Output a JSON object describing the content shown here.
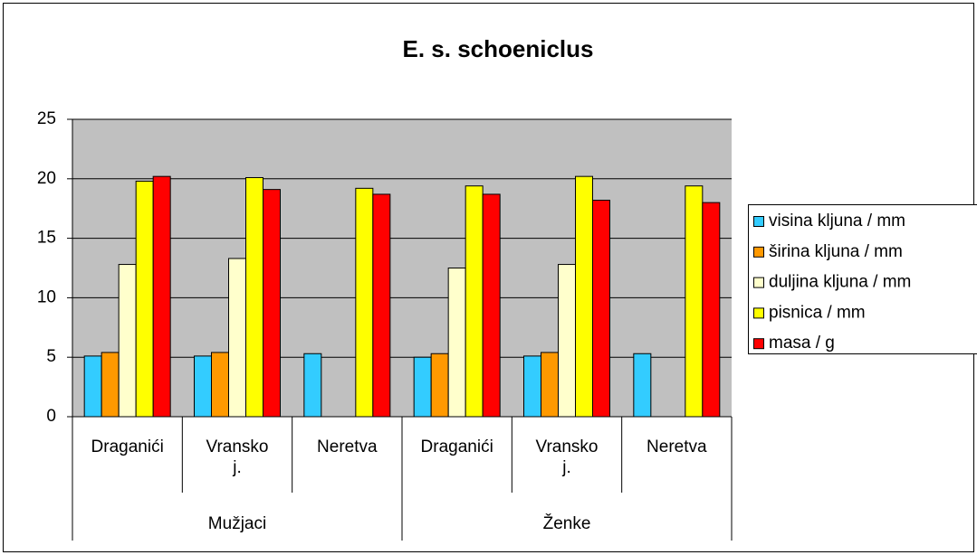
{
  "chart_data": {
    "type": "bar",
    "title": "E. s. schoeniclus",
    "categories": [
      "Draganići",
      "Vransko\nj.",
      "Neretva",
      "Draganići",
      "Vransko\nj.",
      "Neretva"
    ],
    "groups": [
      {
        "name": "Mužjaci",
        "size": 3
      },
      {
        "name": "Ženke",
        "size": 3
      }
    ],
    "series": [
      {
        "name": "visina kljuna / mm",
        "color": "#33ccff",
        "values": [
          5.1,
          5.1,
          5.3,
          5.0,
          5.1,
          5.3
        ]
      },
      {
        "name": "širina kljuna / mm",
        "color": "#ff9900",
        "values": [
          5.4,
          5.4,
          null,
          5.3,
          5.4,
          null
        ]
      },
      {
        "name": "duljina kljuna / mm",
        "color": "#ffffcc",
        "values": [
          12.8,
          13.3,
          null,
          12.5,
          12.8,
          null
        ]
      },
      {
        "name": "pisnica / mm",
        "color": "#ffff00",
        "values": [
          19.8,
          20.1,
          19.2,
          19.4,
          20.2,
          19.4
        ]
      },
      {
        "name": "masa / g",
        "color": "#ff0000",
        "values": [
          20.2,
          19.1,
          18.7,
          18.7,
          18.2,
          18.0
        ]
      }
    ],
    "ylim": [
      0,
      25
    ],
    "yticks": [
      0,
      5,
      10,
      15,
      20,
      25
    ],
    "grid": true,
    "legend": "right"
  }
}
